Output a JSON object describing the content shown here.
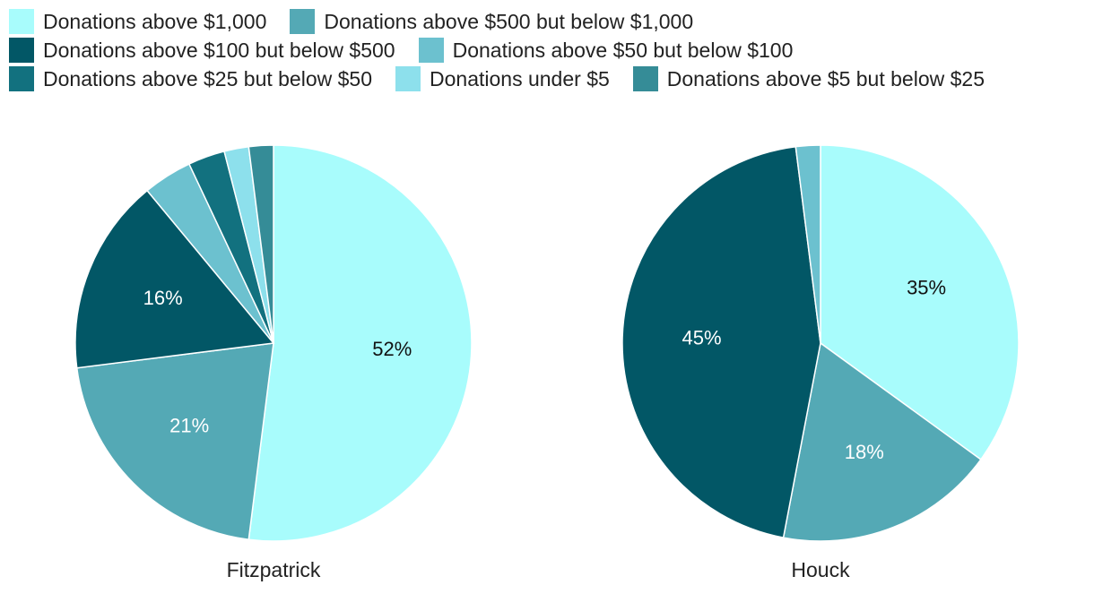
{
  "chart_data": [
    {
      "type": "pie",
      "title": "Fitzpatrick",
      "slices": [
        {
          "label": "Donations above $1,000",
          "value": 52,
          "color": "#a8fcfc",
          "text": "52%"
        },
        {
          "label": "Donations above $500 but below $1,000",
          "value": 21,
          "color": "#54a9b5",
          "text": "21%"
        },
        {
          "label": "Donations above $100 but below $500",
          "value": 16,
          "color": "#025766",
          "text": "16%"
        },
        {
          "label": "Donations above $50 but below $100",
          "value": 4,
          "color": "#6cc1cf",
          "text": ""
        },
        {
          "label": "Donations above $25 but below $50",
          "value": 3,
          "color": "#12717f",
          "text": ""
        },
        {
          "label": "Donations under $5",
          "value": 2,
          "color": "#8de0ec",
          "text": ""
        },
        {
          "label": "Donations above $5 but below $25",
          "value": 2,
          "color": "#358c97",
          "text": ""
        }
      ]
    },
    {
      "type": "pie",
      "title": "Houck",
      "slices": [
        {
          "label": "Donations above $1,000",
          "value": 35,
          "color": "#a8fcfc",
          "text": "35%"
        },
        {
          "label": "Donations above $500 but below $1,000",
          "value": 18,
          "color": "#54a9b5",
          "text": "18%"
        },
        {
          "label": "Donations above $100 but below $500",
          "value": 45,
          "color": "#025766",
          "text": "45%"
        },
        {
          "label": "Donations above $50 but below $100",
          "value": 2,
          "color": "#6cc1cf",
          "text": ""
        }
      ]
    }
  ],
  "legend": {
    "placement": "top",
    "rows": [
      [
        {
          "label": "Donations above $1,000",
          "color": "#a8fcfc"
        },
        {
          "label": "Donations above $500 but below $1,000",
          "color": "#54a9b5"
        }
      ],
      [
        {
          "label": "Donations above $100 but below $500",
          "color": "#025766"
        },
        {
          "label": "Donations above $50 but below $100",
          "color": "#6cc1cf"
        }
      ],
      [
        {
          "label": "Donations above $25 but below $50",
          "color": "#12717f"
        },
        {
          "label": "Donations under $5",
          "color": "#8de0ec"
        },
        {
          "label": "Donations above $5 but below $25",
          "color": "#358c97"
        }
      ]
    ]
  }
}
